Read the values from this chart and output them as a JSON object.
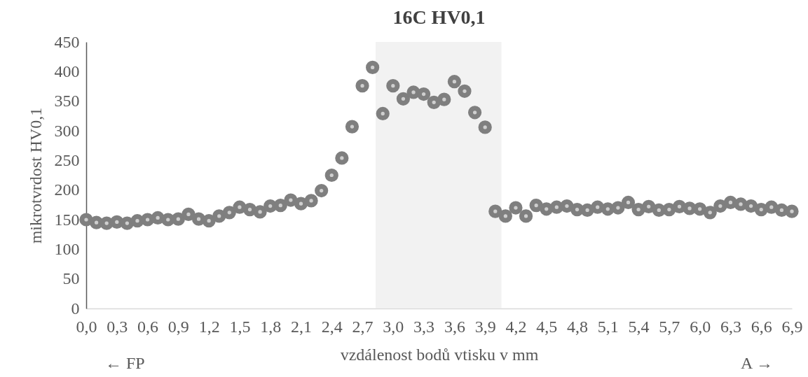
{
  "chart_data": {
    "type": "scatter",
    "title": "16C HV0,1",
    "xlabel": "vzdálenost bodů vtisku v mm",
    "ylabel": "mikrotvrdost HV0,1",
    "annotations": [
      "← FP",
      "A →"
    ],
    "x": [
      0,
      0.1,
      0.2,
      0.3,
      0.4,
      0.5,
      0.6,
      0.7,
      0.8,
      0.9,
      1,
      1.1,
      1.2,
      1.3,
      1.4,
      1.5,
      1.6,
      1.7,
      1.8,
      1.9,
      2,
      2.1,
      2.2,
      2.3,
      2.4,
      2.5,
      2.6,
      2.7,
      2.8,
      2.9,
      3,
      3.1,
      3.2,
      3.3,
      3.4,
      3.5,
      3.6,
      3.7,
      3.8,
      3.9,
      4,
      4.1,
      4.2,
      4.3,
      4.4,
      4.5,
      4.6,
      4.7,
      4.8,
      4.9,
      5,
      5.1,
      5.2,
      5.3,
      5.4,
      5.5,
      5.6,
      5.7,
      5.8,
      5.9,
      6,
      6.1,
      6.2,
      6.3,
      6.4,
      6.5,
      6.6,
      6.7,
      6.8,
      6.9
    ],
    "series": [
      {
        "color": "#7f7f7f",
        "values": [
          150,
          145,
          144,
          146,
          144,
          148,
          150,
          153,
          150,
          151,
          159,
          151,
          148,
          156,
          162,
          171,
          167,
          163,
          173,
          174,
          183,
          177,
          182,
          199,
          225,
          254,
          307,
          376,
          407,
          329,
          376,
          354,
          365,
          362,
          348,
          353,
          383,
          367,
          331,
          306,
          164,
          156,
          170,
          156,
          174,
          168,
          171,
          173,
          167,
          166,
          171,
          168,
          170,
          179,
          167,
          172,
          166,
          167,
          172,
          169,
          168,
          162,
          173,
          179,
          176,
          173,
          167,
          171,
          166,
          164
        ]
      }
    ],
    "marker": "circle",
    "xlim": [
      0,
      6.9
    ],
    "xticks": [
      {
        "value": 0,
        "label": "0,0"
      },
      {
        "value": 0.3,
        "label": "0,3"
      },
      {
        "value": 0.6,
        "label": "0,6"
      },
      {
        "value": 0.9,
        "label": "0,9"
      },
      {
        "value": 1.2,
        "label": "1,2"
      },
      {
        "value": 1.5,
        "label": "1,5"
      },
      {
        "value": 1.8,
        "label": "1,8"
      },
      {
        "value": 2.1,
        "label": "2,1"
      },
      {
        "value": 2.4,
        "label": "2,4"
      },
      {
        "value": 2.7,
        "label": "2,7"
      },
      {
        "value": 3,
        "label": "3,0"
      },
      {
        "value": 3.3,
        "label": "3,3"
      },
      {
        "value": 3.6,
        "label": "3,6"
      },
      {
        "value": 3.9,
        "label": "3,9"
      },
      {
        "value": 4.2,
        "label": "4,2"
      },
      {
        "value": 4.5,
        "label": "4,5"
      },
      {
        "value": 4.8,
        "label": "4,8"
      },
      {
        "value": 5.1,
        "label": "5,1"
      },
      {
        "value": 5.4,
        "label": "5,4"
      },
      {
        "value": 5.7,
        "label": "5,7"
      },
      {
        "value": 6,
        "label": "6,0"
      },
      {
        "value": 6.3,
        "label": "6,3"
      },
      {
        "value": 6.6,
        "label": "6,6"
      },
      {
        "value": 6.9,
        "label": "6,9"
      }
    ],
    "ylim": [
      0,
      450
    ],
    "yticks": [
      0,
      50,
      100,
      150,
      200,
      250,
      300,
      350,
      400,
      450
    ],
    "bands": [
      {
        "axis": "x",
        "from": 2.83,
        "to": 4.06,
        "color": "#f2f2f2"
      }
    ]
  }
}
